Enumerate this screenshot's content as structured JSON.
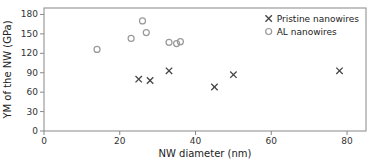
{
  "chart_data": {
    "type": "scatter",
    "xlabel": "NW diameter (nm)",
    "ylabel": "YM of the NW (GPa)",
    "series": [
      {
        "name": "Pristine nanowires",
        "color": "#444444",
        "marker": "x",
        "x": [
          25,
          28,
          33,
          45,
          50,
          78
        ],
        "values": [
          80,
          78,
          93,
          68,
          87,
          93
        ]
      },
      {
        "name": "AL nanowires",
        "color": "#999999",
        "marker": "circle",
        "x": [
          14,
          23,
          26,
          27,
          33,
          35,
          36
        ],
        "values": [
          126,
          143,
          170,
          152,
          137,
          135,
          138
        ]
      }
    ],
    "xlim": [
      0,
      85
    ],
    "ylim": [
      0,
      190
    ],
    "xticks": [
      0,
      20,
      40,
      60,
      80
    ],
    "yticks": [
      0,
      30,
      60,
      90,
      120,
      150,
      180
    ],
    "grid": false,
    "legend": "upper right"
  }
}
